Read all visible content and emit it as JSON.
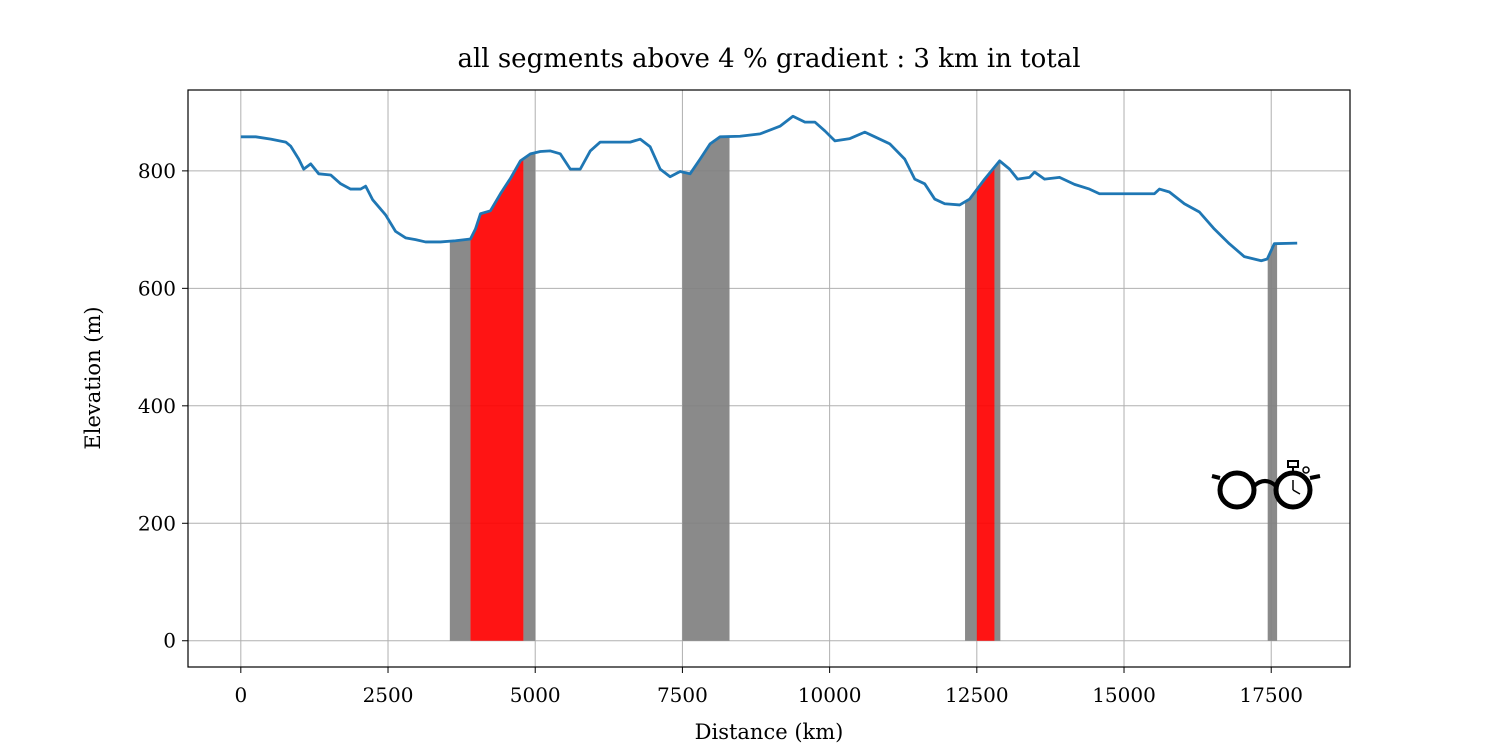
{
  "chart_data": {
    "type": "line",
    "title": "all segments above 4 % gradient : 3 km in total",
    "xlabel": "Distance (km)",
    "ylabel": "Elevation (m)",
    "x": [
      0,
      254,
      509,
      763,
      848,
      984,
      1068,
      1187,
      1323,
      1526,
      1696,
      1865,
      2035,
      2120,
      2238,
      2459,
      2628,
      2798,
      2967,
      3137,
      3391,
      3646,
      3900,
      3985,
      4070,
      4239,
      4409,
      4578,
      4748,
      4918,
      5087,
      5257,
      5426,
      5596,
      5765,
      5935,
      6104,
      6359,
      6613,
      6783,
      6952,
      7122,
      7291,
      7461,
      7630,
      7800,
      7970,
      8139,
      8478,
      8818,
      9157,
      9377,
      9581,
      9751,
      9920,
      10090,
      10344,
      10598,
      10768,
      11022,
      11276,
      11446,
      11615,
      11785,
      11955,
      12209,
      12378,
      12633,
      12887,
      13057,
      13192,
      13396,
      13481,
      13650,
      13905,
      14159,
      14413,
      14583,
      15092,
      15516,
      15601,
      15771,
      16025,
      16280,
      16534,
      16788,
      17043,
      17331,
      17433,
      17552,
      17941
    ],
    "series": [
      {
        "color": "#1f77b4",
        "values": [
          858,
          858,
          854,
          849,
          842,
          820,
          803,
          812,
          795,
          793,
          778,
          769,
          769,
          774,
          751,
          725,
          697,
          686,
          683,
          679,
          679,
          681,
          684,
          701,
          727,
          732,
          761,
          787,
          817,
          829,
          833,
          834,
          829,
          803,
          803,
          834,
          849,
          849,
          849,
          854,
          841,
          803,
          790,
          799,
          795,
          820,
          846,
          858,
          859,
          863,
          876,
          893,
          883,
          883,
          868,
          851,
          855,
          866,
          858,
          846,
          820,
          786,
          778,
          752,
          744,
          742,
          752,
          786,
          817,
          803,
          786,
          789,
          798,
          786,
          789,
          777,
          769,
          761,
          761,
          761,
          769,
          764,
          744,
          730,
          701,
          676,
          654,
          647,
          650,
          676,
          677
        ]
      }
    ],
    "segments": [
      {
        "start": 3550,
        "end": 3900,
        "color": "#808080"
      },
      {
        "start": 3900,
        "end": 4800,
        "color": "#ff0000"
      },
      {
        "start": 4800,
        "end": 5000,
        "color": "#808080"
      },
      {
        "start": 7500,
        "end": 8300,
        "color": "#808080"
      },
      {
        "start": 12300,
        "end": 12500,
        "color": "#808080"
      },
      {
        "start": 12500,
        "end": 12800,
        "color": "#ff0000"
      },
      {
        "start": 12800,
        "end": 12900,
        "color": "#808080"
      },
      {
        "start": 17440,
        "end": 17600,
        "color": "#808080"
      }
    ],
    "xlim": [
      -897,
      18838
    ],
    "xticks": [
      0,
      2500,
      5000,
      7500,
      10000,
      12500,
      15000,
      17500
    ],
    "ylim": [
      -44.7,
      937.7
    ],
    "yticks": [
      0,
      200,
      400,
      600,
      800
    ],
    "grid": true
  }
}
